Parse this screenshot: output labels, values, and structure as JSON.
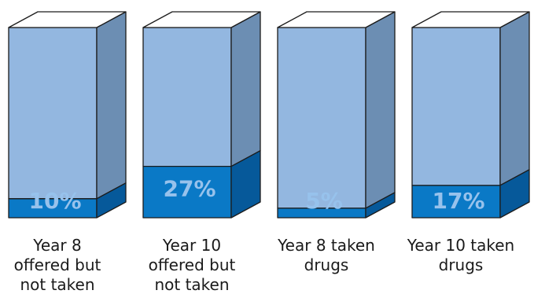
{
  "chart_data": {
    "type": "bar",
    "style": "3d-stacked-percent",
    "categories": [
      "Year 8\noffered but\nnot taken",
      "Year 10\noffered but\nnot taken",
      "Year 8 taken\ndrugs",
      "Year 10 taken\ndrugs"
    ],
    "values": [
      10,
      27,
      5,
      17
    ],
    "value_labels": [
      "10%",
      "27%",
      "5%",
      "17%"
    ],
    "ylim": [
      0,
      100
    ],
    "title": "",
    "xlabel": "",
    "ylabel": "",
    "grid": false,
    "colors": {
      "fill_front": "#0a79c6",
      "fill_side": "#06599a",
      "fill_top": "#2d93d8",
      "rest_front": "#93b7e0",
      "rest_side": "#6c8eb3",
      "edge": "#1c1c1c",
      "label_on_fill": "#97c2ec"
    }
  }
}
